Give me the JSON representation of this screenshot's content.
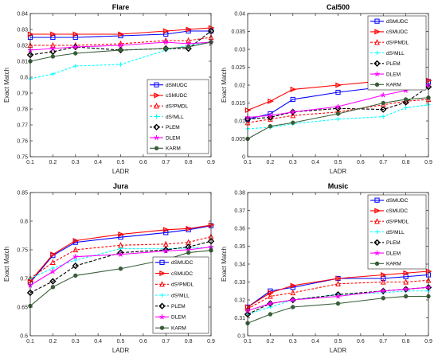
{
  "chart_data": [
    {
      "type": "line",
      "title": "Flare",
      "xlabel": "LADR",
      "ylabel": "Exact Match",
      "xlim": [
        0.1,
        0.9
      ],
      "ylim": [
        0.75,
        0.84
      ],
      "x": [
        0.1,
        0.2,
        0.3,
        0.5,
        0.7,
        0.8,
        0.9
      ],
      "xticks": [
        "0.1",
        "0.2",
        "0.3",
        "0.4",
        "0.5",
        "0.6",
        "0.7",
        "0.8",
        "0.9"
      ],
      "yticks": [
        "0.75",
        "0.76",
        "0.77",
        "0.78",
        "0.79",
        "0.8",
        "0.81",
        "0.82",
        "0.83",
        "0.84"
      ],
      "legend_position": "right",
      "series": [
        {
          "name": "dSMUDC",
          "values": [
            0.825,
            0.825,
            0.825,
            0.826,
            0.827,
            0.829,
            0.829
          ]
        },
        {
          "name": "cSMUDC",
          "values": [
            0.827,
            0.827,
            0.827,
            0.827,
            0.829,
            0.83,
            0.831
          ]
        },
        {
          "name": "dS²PMDL",
          "values": [
            0.82,
            0.82,
            0.82,
            0.821,
            0.823,
            0.823,
            0.825
          ]
        },
        {
          "name": "dS²MLL",
          "values": [
            0.799,
            0.802,
            0.807,
            0.808,
            0.817,
            0.82,
            0.822
          ]
        },
        {
          "name": "PLEM",
          "values": [
            0.814,
            0.816,
            0.819,
            0.817,
            0.818,
            0.818,
            0.829
          ]
        },
        {
          "name": "DLEM",
          "values": [
            0.817,
            0.818,
            0.819,
            0.82,
            0.822,
            0.821,
            0.822
          ]
        },
        {
          "name": "KARM",
          "values": [
            0.81,
            0.813,
            0.815,
            0.817,
            0.818,
            0.819,
            0.822
          ]
        }
      ]
    },
    {
      "type": "line",
      "title": "Cal500",
      "xlabel": "LADR",
      "ylabel": "Exact Match",
      "xlim": [
        0.1,
        0.9
      ],
      "ylim": [
        0,
        0.04
      ],
      "x": [
        0.1,
        0.2,
        0.3,
        0.5,
        0.7,
        0.8,
        0.9
      ],
      "xticks": [
        "0.1",
        "0.2",
        "0.3",
        "0.4",
        "0.5",
        "0.6",
        "0.7",
        "0.8",
        "0.9"
      ],
      "yticks": [
        "0",
        "0.005",
        "0.01",
        "0.015",
        "0.02",
        "0.025",
        "0.03",
        "0.035",
        "0.04"
      ],
      "legend_position": "top-right",
      "series": [
        {
          "name": "dSMUDC",
          "values": [
            0.0105,
            0.012,
            0.016,
            0.018,
            0.0195,
            0.02,
            0.021
          ]
        },
        {
          "name": "cSMUDC",
          "values": [
            0.013,
            0.0155,
            0.0188,
            0.02,
            0.0212,
            0.021,
            0.0213
          ]
        },
        {
          "name": "dS²PMDL",
          "values": [
            0.0095,
            0.0105,
            0.0115,
            0.0125,
            0.0145,
            0.0155,
            0.016
          ]
        },
        {
          "name": "dS²MLL",
          "values": [
            0.0078,
            0.0082,
            0.0092,
            0.0105,
            0.0112,
            0.0137,
            0.0145
          ]
        },
        {
          "name": "PLEM",
          "values": [
            0.0105,
            0.011,
            0.0125,
            0.0135,
            0.0132,
            0.0152,
            0.0195
          ]
        },
        {
          "name": "DLEM",
          "values": [
            0.011,
            0.0115,
            0.0125,
            0.014,
            0.0172,
            0.0185,
            0.02
          ]
        },
        {
          "name": "KARM",
          "values": [
            0.005,
            0.0085,
            0.0095,
            0.012,
            0.015,
            0.016,
            0.0165
          ]
        }
      ]
    },
    {
      "type": "line",
      "title": "Jura",
      "xlabel": "LADR",
      "ylabel": "Exact Match",
      "xlim": [
        0.1,
        0.9
      ],
      "ylim": [
        0.6,
        0.85
      ],
      "x": [
        0.1,
        0.2,
        0.3,
        0.5,
        0.7,
        0.8,
        0.9
      ],
      "xticks": [
        "0.1",
        "0.2",
        "0.3",
        "0.4",
        "0.5",
        "0.6",
        "0.7",
        "0.8",
        "0.9"
      ],
      "yticks": [
        "0.6",
        "0.65",
        "0.7",
        "0.75",
        "0.8",
        "0.85"
      ],
      "legend_position": "bottom-right",
      "series": [
        {
          "name": "dSMUDC",
          "values": [
            0.693,
            0.74,
            0.763,
            0.772,
            0.78,
            0.785,
            0.792
          ]
        },
        {
          "name": "cSMUDC",
          "values": [
            0.695,
            0.742,
            0.766,
            0.777,
            0.785,
            0.787,
            0.793
          ]
        },
        {
          "name": "dS²PMDL",
          "values": [
            0.7,
            0.728,
            0.75,
            0.758,
            0.76,
            0.763,
            0.773
          ]
        },
        {
          "name": "dS²MLL",
          "values": [
            0.7,
            0.718,
            0.732,
            0.752,
            0.752,
            0.753,
            0.754
          ]
        },
        {
          "name": "PLEM",
          "values": [
            0.675,
            0.695,
            0.722,
            0.745,
            0.75,
            0.755,
            0.765
          ]
        },
        {
          "name": "DLEM",
          "values": [
            0.688,
            0.712,
            0.738,
            0.742,
            0.748,
            0.75,
            0.755
          ]
        },
        {
          "name": "KARM",
          "values": [
            0.652,
            0.685,
            0.705,
            0.717,
            0.733,
            0.745,
            0.749
          ]
        }
      ]
    },
    {
      "type": "line",
      "title": "Music",
      "xlabel": "LADR",
      "ylabel": "Exact Match",
      "xlim": [
        0.1,
        0.9
      ],
      "ylim": [
        0.3,
        0.38
      ],
      "x": [
        0.1,
        0.2,
        0.3,
        0.5,
        0.7,
        0.8,
        0.9
      ],
      "xticks": [
        "0.1",
        "0.2",
        "0.3",
        "0.4",
        "0.5",
        "0.6",
        "0.7",
        "0.8",
        "0.9"
      ],
      "yticks": [
        "0.3",
        "0.31",
        "0.32",
        "0.33",
        "0.34",
        "0.35",
        "0.36",
        "0.37",
        "0.38"
      ],
      "legend_position": "top-right",
      "series": [
        {
          "name": "dSMUDC",
          "values": [
            0.316,
            0.325,
            0.327,
            0.332,
            0.332,
            0.333,
            0.334
          ]
        },
        {
          "name": "cSMUDC",
          "values": [
            0.316,
            0.324,
            0.328,
            0.332,
            0.334,
            0.335,
            0.336
          ]
        },
        {
          "name": "dS²PMDL",
          "values": [
            0.315,
            0.322,
            0.324,
            0.329,
            0.33,
            0.33,
            0.331
          ]
        },
        {
          "name": "dS²MLL",
          "values": [
            0.312,
            0.316,
            0.32,
            0.323,
            0.324,
            0.325,
            0.325
          ]
        },
        {
          "name": "PLEM",
          "values": [
            0.312,
            0.318,
            0.32,
            0.323,
            0.325,
            0.326,
            0.327
          ]
        },
        {
          "name": "DLEM",
          "values": [
            0.314,
            0.318,
            0.32,
            0.322,
            0.325,
            0.326,
            0.327
          ]
        },
        {
          "name": "KARM",
          "values": [
            0.307,
            0.312,
            0.316,
            0.318,
            0.321,
            0.322,
            0.322
          ]
        }
      ]
    }
  ],
  "styles": {
    "colors": [
      "#0000ff",
      "#ff0000",
      "#ff0000",
      "#00ffff",
      "#000000",
      "#ff00ff",
      "#385e38"
    ],
    "markers": [
      "square",
      "triangle-right",
      "triangle-up",
      "plus",
      "diamond",
      "star",
      "dot"
    ],
    "dashed": [
      false,
      false,
      true,
      true,
      true,
      false,
      false
    ]
  }
}
